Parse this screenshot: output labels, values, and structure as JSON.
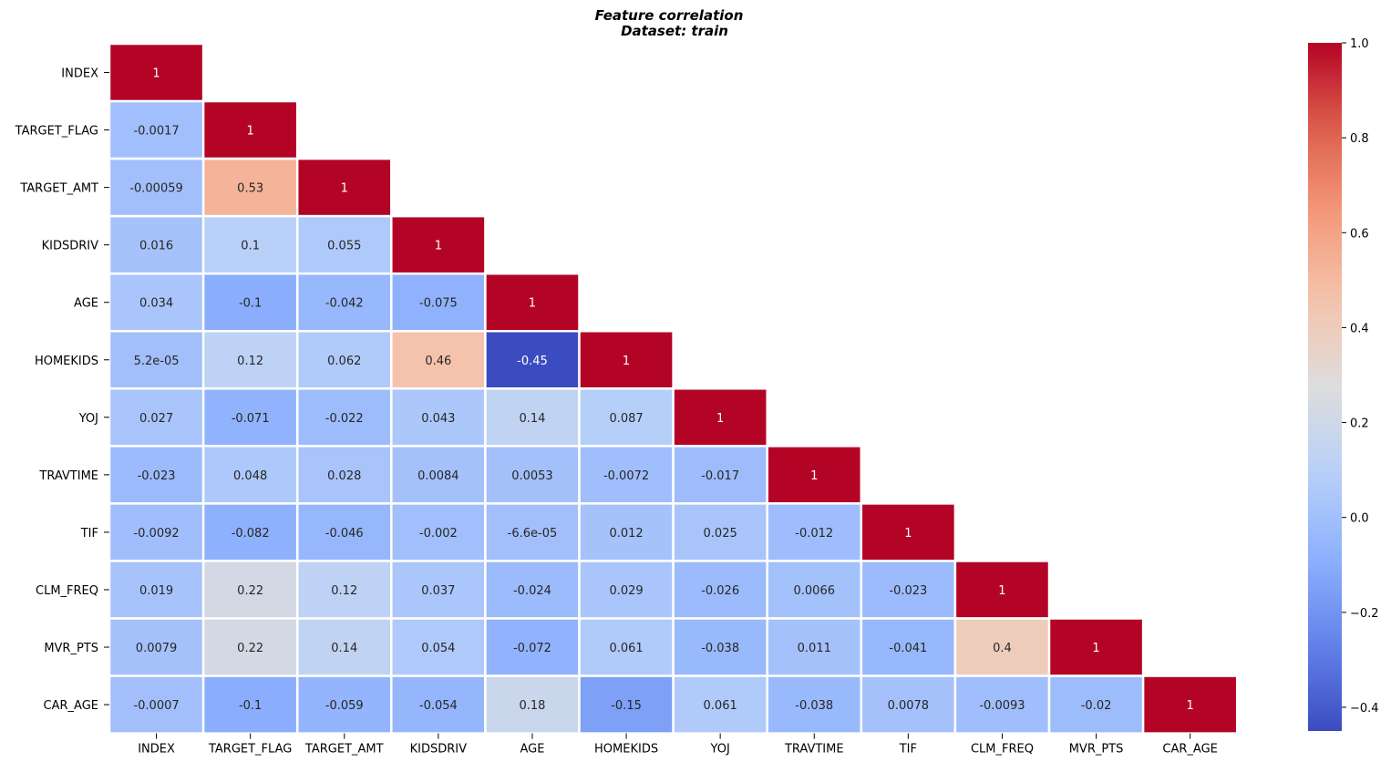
{
  "chart_data": {
    "type": "heatmap",
    "title": "Feature correlation",
    "subtitle": "Dataset: train",
    "variables": [
      "INDEX",
      "TARGET_FLAG",
      "TARGET_AMT",
      "KIDSDRIV",
      "AGE",
      "HOMEKIDS",
      "YOJ",
      "TRAVTIME",
      "TIF",
      "CLM_FREQ",
      "MVR_PTS",
      "CAR_AGE"
    ],
    "mask": "lower-triangle",
    "values": [
      [
        1
      ],
      [
        -0.0017,
        1
      ],
      [
        -0.00059,
        0.53,
        1
      ],
      [
        0.016,
        0.1,
        0.055,
        1
      ],
      [
        0.034,
        -0.1,
        -0.042,
        -0.075,
        1
      ],
      [
        5.2e-05,
        0.12,
        0.062,
        0.46,
        -0.45,
        1
      ],
      [
        0.027,
        -0.071,
        -0.022,
        0.043,
        0.14,
        0.087,
        1
      ],
      [
        -0.023,
        0.048,
        0.028,
        0.0084,
        0.0053,
        -0.0072,
        -0.017,
        1
      ],
      [
        -0.0092,
        -0.082,
        -0.046,
        -0.002,
        -6.6e-05,
        0.012,
        0.025,
        -0.012,
        1
      ],
      [
        0.019,
        0.22,
        0.12,
        0.037,
        -0.024,
        0.029,
        -0.026,
        0.0066,
        -0.023,
        1
      ],
      [
        0.0079,
        0.22,
        0.14,
        0.054,
        -0.072,
        0.061,
        -0.038,
        0.011,
        -0.041,
        0.4,
        1
      ],
      [
        -0.0007,
        -0.1,
        -0.059,
        -0.054,
        0.18,
        -0.15,
        0.061,
        -0.038,
        0.0078,
        -0.0093,
        -0.02,
        1
      ]
    ],
    "labels": [
      [
        "1"
      ],
      [
        "-0.0017",
        "1"
      ],
      [
        "-0.00059",
        "0.53",
        "1"
      ],
      [
        "0.016",
        "0.1",
        "0.055",
        "1"
      ],
      [
        "0.034",
        "-0.1",
        "-0.042",
        "-0.075",
        "1"
      ],
      [
        "5.2e-05",
        "0.12",
        "0.062",
        "0.46",
        "-0.45",
        "1"
      ],
      [
        "0.027",
        "-0.071",
        "-0.022",
        "0.043",
        "0.14",
        "0.087",
        "1"
      ],
      [
        "-0.023",
        "0.048",
        "0.028",
        "0.0084",
        "0.0053",
        "-0.0072",
        "-0.017",
        "1"
      ],
      [
        "-0.0092",
        "-0.082",
        "-0.046",
        "-0.002",
        "-6.6e-05",
        "0.012",
        "0.025",
        "-0.012",
        "1"
      ],
      [
        "0.019",
        "0.22",
        "0.12",
        "0.037",
        "-0.024",
        "0.029",
        "-0.026",
        "0.0066",
        "-0.023",
        "1"
      ],
      [
        "0.0079",
        "0.22",
        "0.14",
        "0.054",
        "-0.072",
        "0.061",
        "-0.038",
        "0.011",
        "-0.041",
        "0.4",
        "1"
      ],
      [
        "-0.0007",
        "-0.1",
        "-0.059",
        "-0.054",
        "0.18",
        "-0.15",
        "0.061",
        "-0.038",
        "0.0078",
        "-0.0093",
        "-0.02",
        "1"
      ]
    ],
    "colorbar": {
      "colormap": "coolwarm",
      "range": [
        -0.45,
        1.0
      ],
      "ticks": [
        -0.4,
        -0.2,
        0.0,
        0.2,
        0.4,
        0.6,
        0.8,
        1.0
      ],
      "tick_labels": [
        "−0.4",
        "−0.2",
        "0.0",
        "0.2",
        "0.4",
        "0.6",
        "0.8",
        "1.0"
      ]
    },
    "colors": {
      "low": "#3b4cc0",
      "mid": "#dddddd",
      "high": "#b40426",
      "cell_border": "#ffffff"
    }
  }
}
